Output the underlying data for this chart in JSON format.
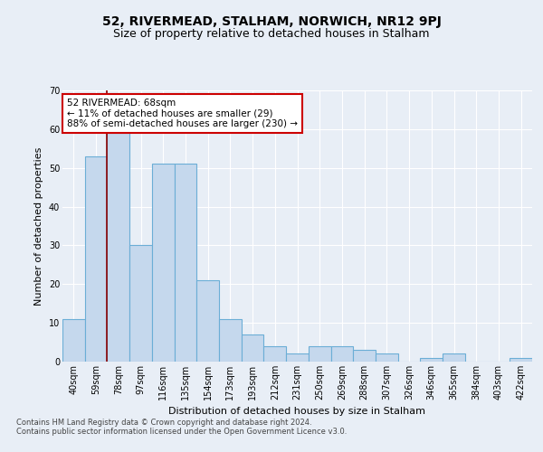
{
  "title_line1": "52, RIVERMEAD, STALHAM, NORWICH, NR12 9PJ",
  "title_line2": "Size of property relative to detached houses in Stalham",
  "xlabel": "Distribution of detached houses by size in Stalham",
  "ylabel": "Number of detached properties",
  "categories": [
    "40sqm",
    "59sqm",
    "78sqm",
    "97sqm",
    "116sqm",
    "135sqm",
    "154sqm",
    "173sqm",
    "193sqm",
    "212sqm",
    "231sqm",
    "250sqm",
    "269sqm",
    "288sqm",
    "307sqm",
    "326sqm",
    "346sqm",
    "365sqm",
    "384sqm",
    "403sqm",
    "422sqm"
  ],
  "values": [
    11,
    53,
    59,
    30,
    51,
    51,
    21,
    11,
    7,
    4,
    2,
    4,
    4,
    3,
    2,
    0,
    1,
    2,
    0,
    0,
    1
  ],
  "bar_color": "#c5d8ed",
  "bar_edgecolor": "#6baed6",
  "background_color": "#e8eef6",
  "plot_bg_color": "#e8eef6",
  "vline_x_idx": 1,
  "vline_color": "#8b0000",
  "annotation_text": "52 RIVERMEAD: 68sqm\n← 11% of detached houses are smaller (29)\n88% of semi-detached houses are larger (230) →",
  "annotation_box_facecolor": "#ffffff",
  "annotation_box_edgecolor": "#cc0000",
  "ylim": [
    0,
    70
  ],
  "yticks": [
    0,
    10,
    20,
    30,
    40,
    50,
    60,
    70
  ],
  "footer_text": "Contains HM Land Registry data © Crown copyright and database right 2024.\nContains public sector information licensed under the Open Government Licence v3.0.",
  "title1_fontsize": 10,
  "title2_fontsize": 9,
  "xlabel_fontsize": 8,
  "ylabel_fontsize": 8,
  "tick_fontsize": 7,
  "annot_fontsize": 7.5,
  "footer_fontsize": 6
}
